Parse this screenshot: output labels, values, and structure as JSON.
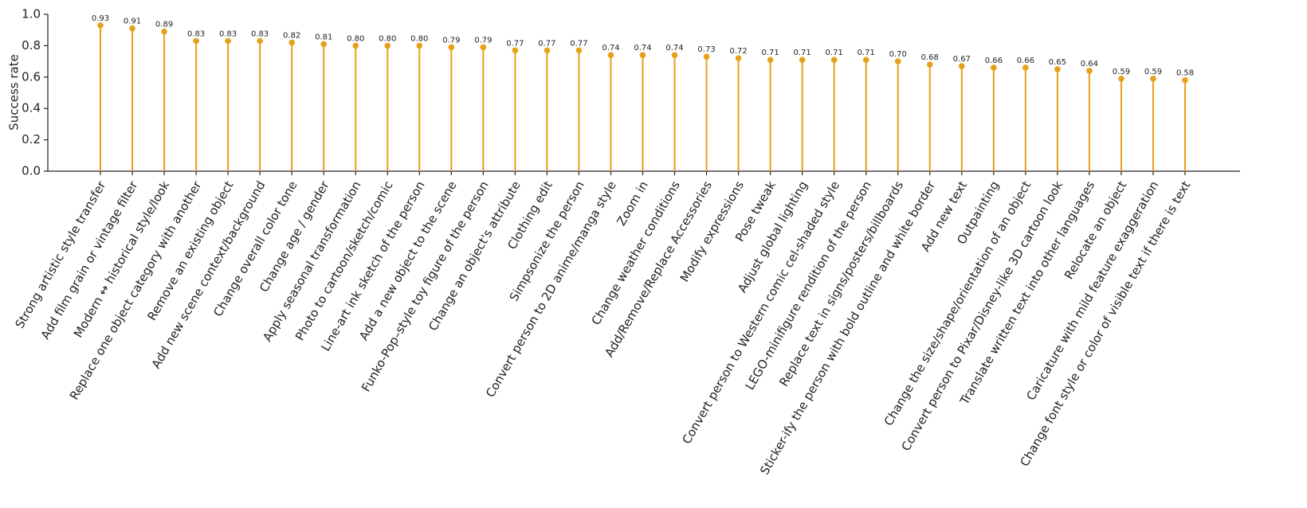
{
  "chart_data": {
    "type": "lollipop",
    "ylabel": "Success rate",
    "categories": [
      "Strong artistic style transfer",
      "Add film grain or vintage filter",
      "Modern ↔ historical style/look",
      "Replace one object category with another",
      "Remove an existing object",
      "Add new scene context/background",
      "Change overall color tone",
      "Change age / gender",
      "Apply seasonal transformation",
      "Photo to cartoon/sketch/comic",
      "Line-art ink sketch of the person",
      "Add a new object to the scene",
      "Funko-Pop–style toy figure of the person",
      "Change an object's attribute",
      "Clothing edit",
      "Simpsonize the person",
      "Convert person to 2D anime/manga style",
      "Zoom in",
      "Change weather conditions",
      "Add/Remove/Replace Accessories",
      "Modify expressions",
      "Pose tweak",
      "Adjust global lighting",
      "Convert person to Western comic cel-shaded style",
      "LEGO-minifigure rendition of the person",
      "Replace text in signs/posters/billboards",
      "Sticker-ify the person with bold outline and white border",
      "Add new text",
      "Outpainting",
      "Change the size/shape/orientation of an object",
      "Convert person to Pixar/Disney-like 3D cartoon look",
      "Translate written text into other languages",
      "Relocate an object",
      "Caricature with mild feature exaggeration",
      "Change font style or color of visible text if there is text"
    ],
    "values": [
      0.93,
      0.91,
      0.89,
      0.83,
      0.83,
      0.83,
      0.82,
      0.81,
      0.8,
      0.8,
      0.8,
      0.79,
      0.79,
      0.77,
      0.77,
      0.77,
      0.74,
      0.74,
      0.74,
      0.73,
      0.72,
      0.71,
      0.71,
      0.71,
      0.71,
      0.7,
      0.68,
      0.67,
      0.66,
      0.66,
      0.65,
      0.64,
      0.59,
      0.59,
      0.58
    ],
    "value_labels": [
      "0.93",
      "0.91",
      "0.89",
      "0.83",
      "0.83",
      "0.83",
      "0.82",
      "0.81",
      "0.80",
      "0.80",
      "0.80",
      "0.79",
      "0.79",
      "0.77",
      "0.77",
      "0.77",
      "0.74",
      "0.74",
      "0.74",
      "0.73",
      "0.72",
      "0.71",
      "0.71",
      "0.71",
      "0.71",
      "0.70",
      "0.68",
      "0.67",
      "0.66",
      "0.66",
      "0.65",
      "0.64",
      "0.59",
      "0.59",
      "0.58"
    ],
    "color": "#e5a11a",
    "ylim": [
      0,
      1
    ],
    "yticks": [
      {
        "value": 0,
        "label": "0.0"
      },
      {
        "value": 0.2,
        "label": "0.2"
      },
      {
        "value": 0.4,
        "label": "0.4"
      },
      {
        "value": 0.6,
        "label": "0.6"
      },
      {
        "value": 0.8,
        "label": "0.8"
      },
      {
        "value": 1,
        "label": "1.0"
      }
    ],
    "grid": false
  }
}
